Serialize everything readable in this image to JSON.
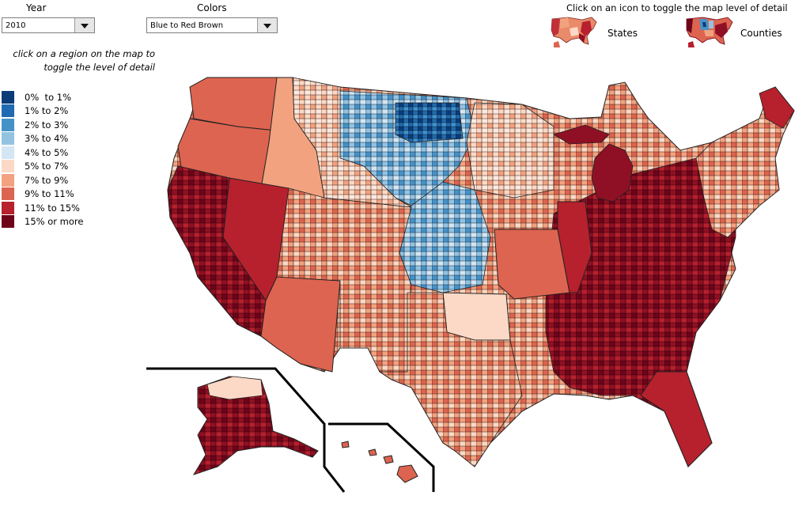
{
  "controls": {
    "year_label": "Year",
    "year_value": "2010",
    "colors_label": "Colors",
    "colors_value": "Blue to Red Brown"
  },
  "hint": {
    "line1": "click on a region on the map to",
    "line2": "toggle the level of detail"
  },
  "legend": [
    {
      "label": "0%  to 1%",
      "color": "#0b3c78"
    },
    {
      "label": "1% to 2%",
      "color": "#1f6ab0"
    },
    {
      "label": "2% to 3%",
      "color": "#4592c8"
    },
    {
      "label": "3% to 4%",
      "color": "#94c3e1"
    },
    {
      "label": "4% to 5%",
      "color": "#d4e6f3"
    },
    {
      "label": "5% to 7%",
      "color": "#fbd9c6"
    },
    {
      "label": "7% to 9%",
      "color": "#f2a27f"
    },
    {
      "label": "9% to 11%",
      "color": "#dd6450"
    },
    {
      "label": "11% to 15%",
      "color": "#b7202d"
    },
    {
      "label": "15% or more",
      "color": "#6d0419"
    }
  ],
  "toggle": {
    "title": "Click on an icon to toggle the map level of detail",
    "states_label": "States",
    "counties_label": "Counties"
  }
}
